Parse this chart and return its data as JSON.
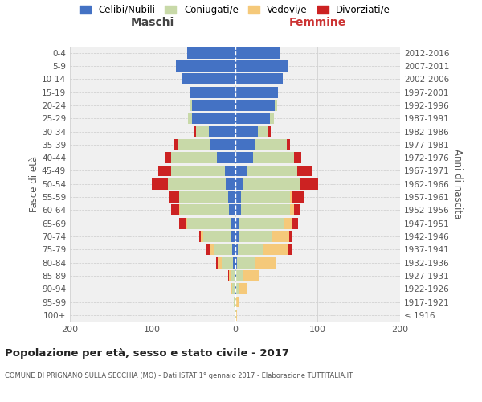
{
  "age_groups": [
    "100+",
    "95-99",
    "90-94",
    "85-89",
    "80-84",
    "75-79",
    "70-74",
    "65-69",
    "60-64",
    "55-59",
    "50-54",
    "45-49",
    "40-44",
    "35-39",
    "30-34",
    "25-29",
    "20-24",
    "15-19",
    "10-14",
    "5-9",
    "0-4"
  ],
  "birth_years": [
    "≤ 1916",
    "1917-1921",
    "1922-1926",
    "1927-1931",
    "1932-1936",
    "1937-1941",
    "1942-1946",
    "1947-1951",
    "1952-1956",
    "1957-1961",
    "1962-1966",
    "1967-1971",
    "1972-1976",
    "1977-1981",
    "1982-1986",
    "1987-1991",
    "1992-1996",
    "1997-2001",
    "2002-2006",
    "2007-2011",
    "2012-2016"
  ],
  "males": {
    "celibe": [
      0,
      0,
      0,
      0,
      2,
      3,
      4,
      5,
      7,
      8,
      11,
      12,
      22,
      30,
      32,
      52,
      52,
      55,
      65,
      72,
      58
    ],
    "coniugato": [
      0,
      1,
      3,
      5,
      14,
      22,
      34,
      53,
      60,
      60,
      70,
      65,
      55,
      40,
      15,
      5,
      3,
      0,
      0,
      0,
      0
    ],
    "vedovo": [
      0,
      0,
      1,
      2,
      5,
      5,
      3,
      2,
      1,
      0,
      0,
      0,
      0,
      0,
      0,
      0,
      0,
      0,
      0,
      0,
      0
    ],
    "divorziato": [
      0,
      0,
      0,
      1,
      2,
      6,
      2,
      8,
      9,
      12,
      20,
      16,
      8,
      4,
      3,
      0,
      0,
      0,
      0,
      0,
      0
    ]
  },
  "females": {
    "nubile": [
      0,
      0,
      1,
      1,
      2,
      3,
      4,
      5,
      7,
      7,
      10,
      15,
      22,
      25,
      28,
      42,
      48,
      52,
      58,
      65,
      55
    ],
    "coniugata": [
      1,
      1,
      3,
      8,
      22,
      32,
      40,
      55,
      60,
      60,
      68,
      60,
      50,
      38,
      12,
      5,
      3,
      0,
      0,
      0,
      0
    ],
    "vedova": [
      1,
      3,
      10,
      20,
      25,
      30,
      22,
      10,
      5,
      3,
      1,
      0,
      0,
      0,
      0,
      0,
      0,
      0,
      0,
      0,
      0
    ],
    "divorziata": [
      0,
      0,
      0,
      0,
      0,
      5,
      3,
      6,
      7,
      14,
      22,
      18,
      8,
      4,
      3,
      0,
      0,
      0,
      0,
      0,
      0
    ]
  },
  "colors": {
    "celibe": "#4472c4",
    "coniugato": "#c8d9a8",
    "vedovo": "#f5c97a",
    "divorziato": "#cc2222"
  },
  "xlim": 200,
  "title": "Popolazione per età, sesso e stato civile - 2017",
  "subtitle": "COMUNE DI PRIGNANO SULLA SECCHIA (MO) - Dati ISTAT 1° gennaio 2017 - Elaborazione TUTTITALIA.IT",
  "ylabel_left": "Fasce di età",
  "ylabel_right": "Anni di nascita",
  "xlabel_left": "Maschi",
  "xlabel_right": "Femmine",
  "bg_color": "#f0f0f0",
  "legend_labels": [
    "Celibi/Nubili",
    "Coniugati/e",
    "Vedovi/e",
    "Divorziati/e"
  ]
}
